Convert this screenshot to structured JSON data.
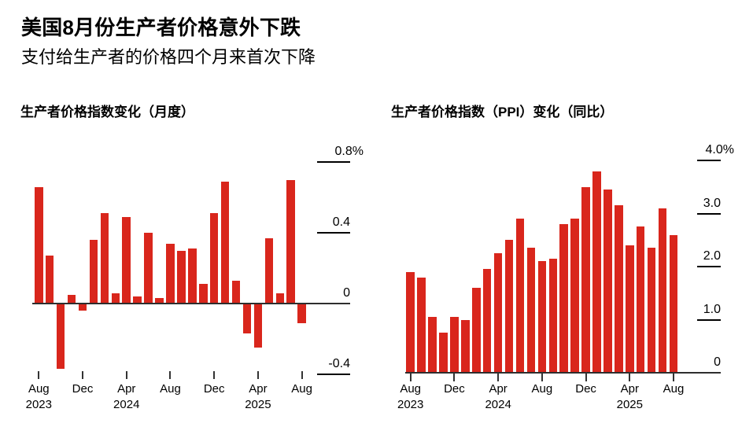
{
  "header": {
    "title": "美国8月份生产者价格意外下跌",
    "subtitle": "支付给生产者的价格四个月来首次下降"
  },
  "colors": {
    "bar": "#d9261c",
    "axis": "#2e2e2e",
    "text": "#000000",
    "background": "#ffffff"
  },
  "chart_data": [
    {
      "type": "bar",
      "title": "生产者价格指数变化（月度）",
      "ylabel": "percent change month-over-month",
      "ylim": [
        -0.45,
        0.85
      ],
      "grid": false,
      "x": [
        "Aug 2023",
        "Sep 2023",
        "Oct 2023",
        "Nov 2023",
        "Dec 2023",
        "Jan 2024",
        "Feb 2024",
        "Mar 2024",
        "Apr 2024",
        "May 2024",
        "Jun 2024",
        "Jul 2024",
        "Aug 2024",
        "Sep 2024",
        "Oct 2024",
        "Nov 2024",
        "Dec 2024",
        "Jan 2025",
        "Feb 2025",
        "Mar 2025",
        "Apr 2025",
        "May 2025",
        "Jun 2025",
        "Jul 2025",
        "Aug 2025"
      ],
      "values": [
        0.66,
        0.27,
        -0.37,
        0.05,
        -0.04,
        0.36,
        0.51,
        0.06,
        0.49,
        0.04,
        0.4,
        0.03,
        0.34,
        0.3,
        0.31,
        0.11,
        0.51,
        0.69,
        0.13,
        -0.17,
        -0.25,
        0.37,
        0.06,
        0.7,
        -0.11
      ],
      "yticks": [
        {
          "label": "0.8",
          "suffix": "%",
          "value": 0.8
        },
        {
          "label": "0.4",
          "value": 0.4
        },
        {
          "label": "0",
          "value": 0
        },
        {
          "label": "-0.4",
          "value": -0.4
        }
      ],
      "xticks": [
        {
          "index": 0,
          "month": "Aug",
          "year": "2023"
        },
        {
          "index": 4,
          "month": "Dec"
        },
        {
          "index": 8,
          "month": "Apr",
          "year": "2024"
        },
        {
          "index": 12,
          "month": "Aug"
        },
        {
          "index": 16,
          "month": "Dec"
        },
        {
          "index": 20,
          "month": "Apr",
          "year": "2025"
        },
        {
          "index": 24,
          "month": "Aug"
        }
      ]
    },
    {
      "type": "bar",
      "title": "生产者价格指数（PPI）变化（同比）",
      "ylabel": "percent change year-over-year",
      "ylim": [
        0,
        4.0
      ],
      "grid": false,
      "x": [
        "Aug 2023",
        "Sep 2023",
        "Oct 2023",
        "Nov 2023",
        "Dec 2023",
        "Jan 2024",
        "Feb 2024",
        "Mar 2024",
        "Apr 2024",
        "May 2024",
        "Jun 2024",
        "Jul 2024",
        "Aug 2024",
        "Sep 2024",
        "Oct 2024",
        "Nov 2024",
        "Dec 2024",
        "Jan 2025",
        "Feb 2025",
        "Mar 2025",
        "Apr 2025",
        "May 2025",
        "Jun 2025",
        "Jul 2025",
        "Aug 2025"
      ],
      "values": [
        1.9,
        1.8,
        1.05,
        0.75,
        1.05,
        1.0,
        1.6,
        1.95,
        2.25,
        2.5,
        2.9,
        2.35,
        2.1,
        2.15,
        2.8,
        2.9,
        3.5,
        3.8,
        3.45,
        3.15,
        2.4,
        2.75,
        2.35,
        3.1,
        2.6
      ],
      "yticks": [
        {
          "label": "4.0",
          "suffix": "%",
          "value": 4.0
        },
        {
          "label": "3.0",
          "value": 3.0
        },
        {
          "label": "2.0",
          "value": 2.0
        },
        {
          "label": "1.0",
          "value": 1.0
        },
        {
          "label": "0",
          "value": 0,
          "on_axis": true
        }
      ],
      "xticks": [
        {
          "index": 0,
          "month": "Aug",
          "year": "2023"
        },
        {
          "index": 4,
          "month": "Dec"
        },
        {
          "index": 8,
          "month": "Apr",
          "year": "2024"
        },
        {
          "index": 12,
          "month": "Aug"
        },
        {
          "index": 16,
          "month": "Dec"
        },
        {
          "index": 20,
          "month": "Apr",
          "year": "2025"
        },
        {
          "index": 24,
          "month": "Aug"
        }
      ]
    }
  ]
}
